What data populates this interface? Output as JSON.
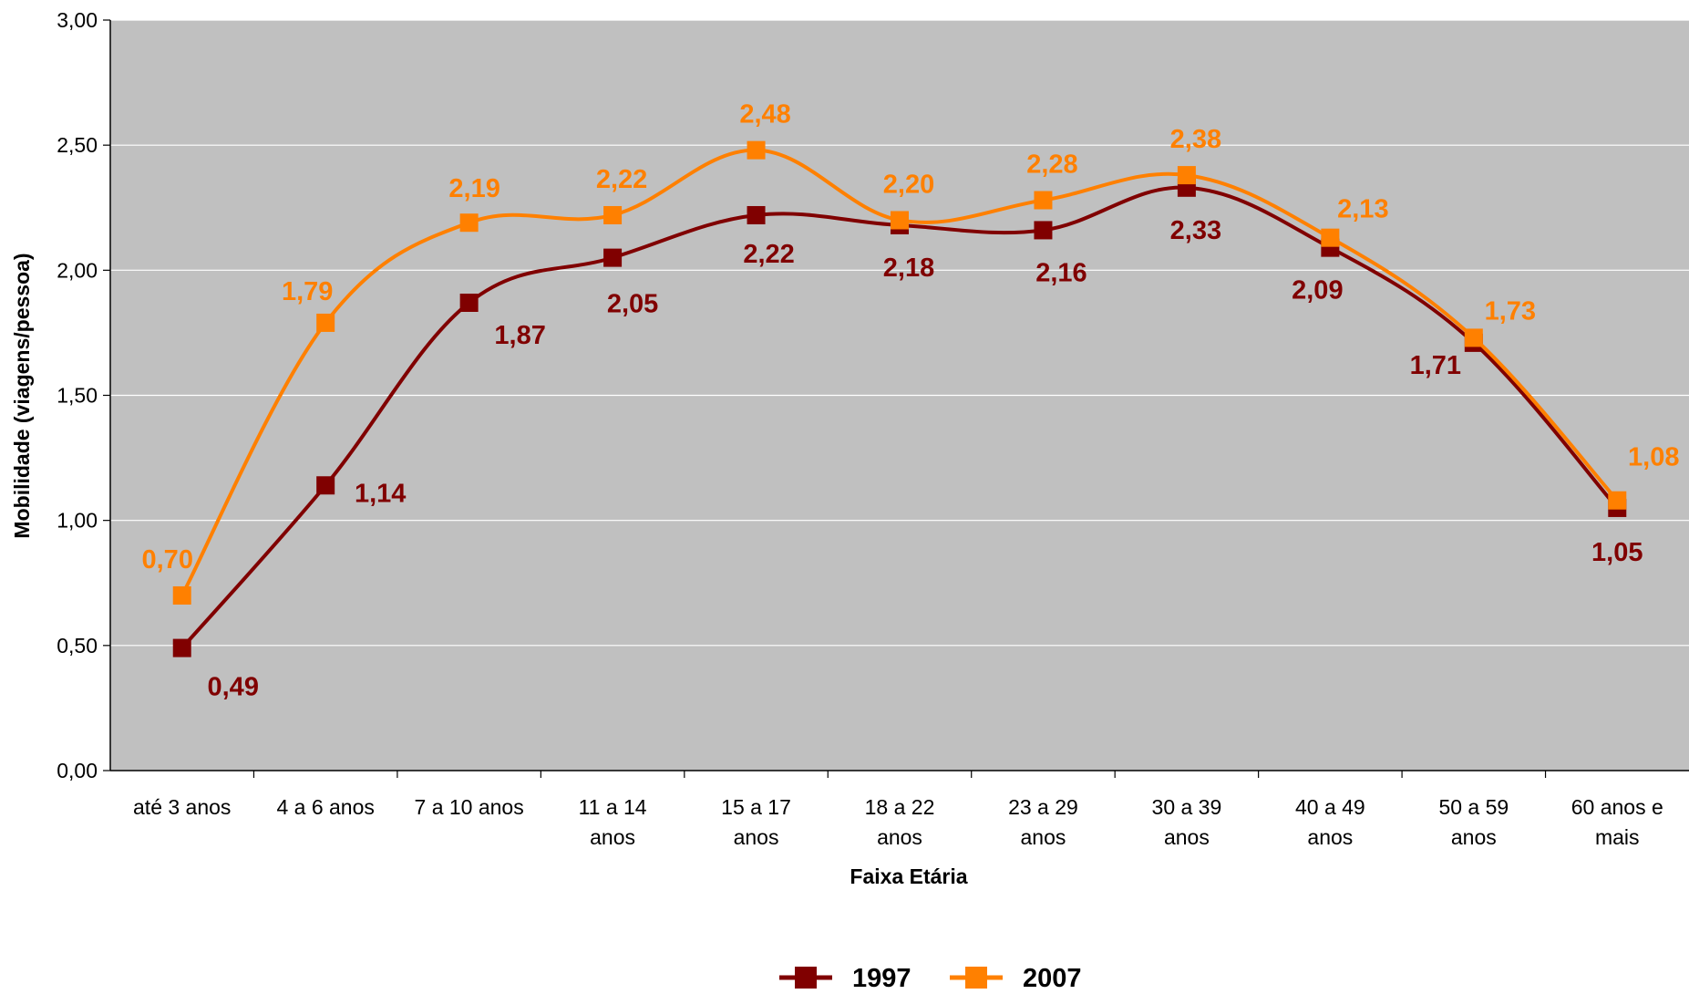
{
  "chart_data": {
    "type": "line",
    "title": "",
    "xlabel": "Faixa Etária",
    "ylabel": "Mobilidade (viagens/pessoa)",
    "ylim": [
      0,
      3
    ],
    "y_ticks": [
      "0,00",
      "0,50",
      "1,00",
      "1,50",
      "2,00",
      "2,50",
      "3,00"
    ],
    "grid": "horizontal",
    "legend_position": "bottom",
    "categories": [
      [
        "até 3 anos"
      ],
      [
        "4 a 6 anos"
      ],
      [
        "7 a 10 anos"
      ],
      [
        "11 a 14",
        "anos"
      ],
      [
        "15 a 17",
        "anos"
      ],
      [
        "18 a 22",
        "anos"
      ],
      [
        "23 a 29",
        "anos"
      ],
      [
        "30 a 39",
        "anos"
      ],
      [
        "40 a 49",
        "anos"
      ],
      [
        "50 a 59",
        "anos"
      ],
      [
        "60 anos e",
        "mais"
      ]
    ],
    "series": [
      {
        "name": "1997",
        "color": "#800000",
        "values": [
          0.49,
          1.14,
          1.87,
          2.05,
          2.22,
          2.18,
          2.16,
          2.33,
          2.09,
          1.71,
          1.05
        ],
        "labels": [
          "0,49",
          "1,14",
          "1,87",
          "2,05",
          "2,22",
          "2,18",
          "2,16",
          "2,33",
          "2,09",
          "1,71",
          "1,05"
        ]
      },
      {
        "name": "2007",
        "color": "#ff8000",
        "values": [
          0.7,
          1.79,
          2.19,
          2.22,
          2.48,
          2.2,
          2.28,
          2.38,
          2.13,
          1.73,
          1.08
        ],
        "labels": [
          "0,70",
          "1,79",
          "2,19",
          "2,22",
          "2,48",
          "2,20",
          "2,28",
          "2,38",
          "2,13",
          "1,73",
          "1,08"
        ]
      }
    ],
    "plot_background": "#c0c0c0"
  }
}
